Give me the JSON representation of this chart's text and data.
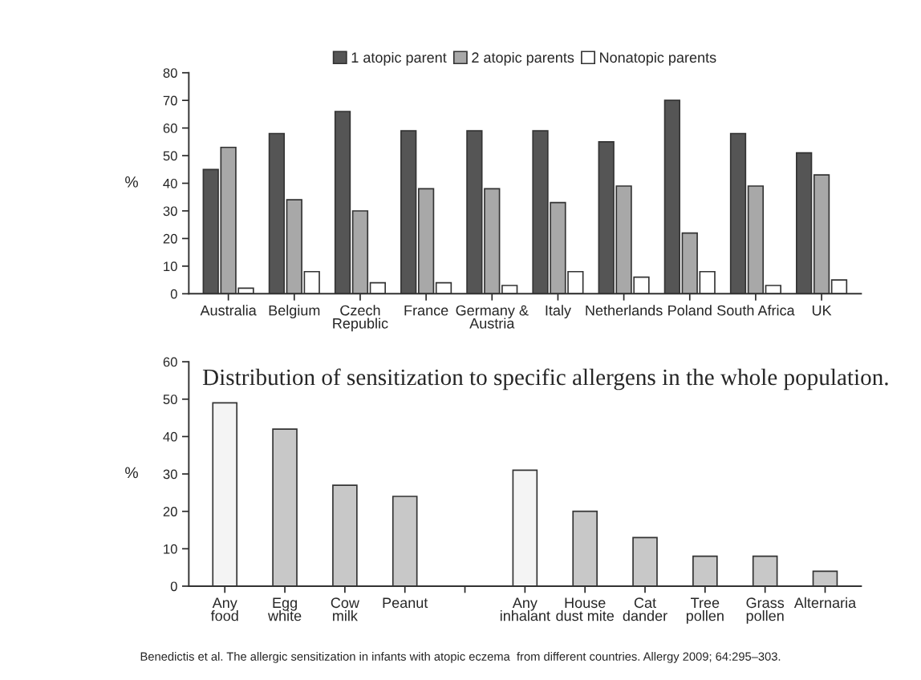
{
  "chart_data": [
    {
      "type": "bar",
      "ylabel": "%",
      "legend": "top",
      "ylim": [
        0,
        80
      ],
      "yticks": [
        0,
        10,
        20,
        30,
        40,
        50,
        60,
        70,
        80
      ],
      "categories": [
        "Australia",
        "Belgium",
        "Czech\nRepublic",
        "France",
        "Germany &\nAustria",
        "Italy",
        "Netherlands",
        "Poland",
        "South Africa",
        "UK"
      ],
      "series": [
        {
          "name": "1 atopic parent",
          "color": "#555555",
          "values": [
            45,
            58,
            66,
            59,
            59,
            59,
            55,
            70,
            58,
            51
          ]
        },
        {
          "name": "2 atopic parents",
          "color": "#a8a8a8",
          "values": [
            53,
            34,
            30,
            38,
            38,
            33,
            39,
            22,
            39,
            43
          ]
        },
        {
          "name": "Nonatopic parents",
          "color": "#ffffff",
          "values": [
            2,
            8,
            4,
            4,
            3,
            8,
            6,
            8,
            3,
            5
          ]
        }
      ]
    },
    {
      "type": "bar",
      "title": "Distribution of sensitization to specific allergens in the whole population.",
      "ylabel": "%",
      "ylim": [
        0,
        60
      ],
      "yticks": [
        0,
        10,
        20,
        30,
        40,
        50,
        60
      ],
      "categories": [
        "Any\nfood",
        "Egg\nwhite",
        "Cow\nmilk",
        "Peanut",
        null,
        "Any\ninhalant",
        "House\ndust mite",
        "Cat\ndander",
        "Tree\npollen",
        "Grass\npollen",
        "Alternaria"
      ],
      "values": [
        49,
        42,
        27,
        24,
        null,
        31,
        20,
        13,
        8,
        8,
        4
      ],
      "colors": [
        "#f4f4f4",
        "#c8c8c8",
        "#c8c8c8",
        "#c8c8c8",
        null,
        "#f4f4f4",
        "#c8c8c8",
        "#c8c8c8",
        "#c8c8c8",
        "#c8c8c8",
        "#c8c8c8"
      ],
      "annotations": [
        "Benedictis et al. The allergic sensitization in infants with atopic eczema  from different countries. Allergy 2009; 64:295–303."
      ]
    }
  ]
}
